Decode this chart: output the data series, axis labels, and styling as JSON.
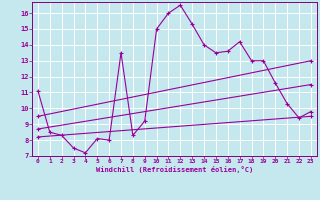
{
  "xlabel": "Windchill (Refroidissement éolien,°C)",
  "bg_color": "#c5e8ef",
  "grid_color": "#b0d8e0",
  "line_color": "#990099",
  "spine_color": "#800080",
  "xlim": [
    -0.5,
    23.5
  ],
  "ylim": [
    7,
    16.7
  ],
  "xticks": [
    0,
    1,
    2,
    3,
    4,
    5,
    6,
    7,
    8,
    9,
    10,
    11,
    12,
    13,
    14,
    15,
    16,
    17,
    18,
    19,
    20,
    21,
    22,
    23
  ],
  "yticks": [
    7,
    8,
    9,
    10,
    11,
    12,
    13,
    14,
    15,
    16
  ],
  "series1_x": [
    0,
    1,
    2,
    3,
    4,
    5,
    6,
    7,
    8,
    9,
    10,
    11,
    12,
    13,
    14,
    15,
    16,
    17,
    18,
    19,
    20,
    21,
    22,
    23
  ],
  "series1_y": [
    11.1,
    8.5,
    8.3,
    7.5,
    7.2,
    8.1,
    8.0,
    13.5,
    8.3,
    9.2,
    15.0,
    16.0,
    16.5,
    15.3,
    14.0,
    13.5,
    13.6,
    14.2,
    13.0,
    13.0,
    11.6,
    10.3,
    9.4,
    9.8
  ],
  "series2_x": [
    0,
    23
  ],
  "series2_y": [
    9.5,
    13.0
  ],
  "series3_x": [
    0,
    23
  ],
  "series3_y": [
    8.7,
    11.5
  ],
  "series4_x": [
    0,
    23
  ],
  "series4_y": [
    8.2,
    9.5
  ]
}
